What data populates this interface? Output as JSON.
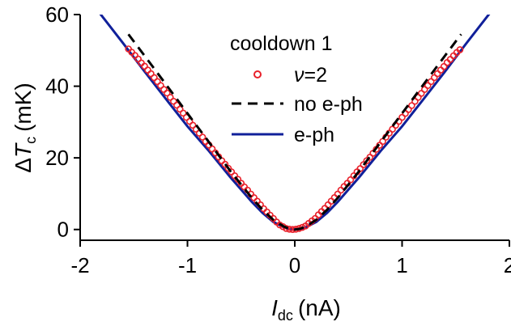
{
  "chart_data": {
    "type": "scatter",
    "xlabel": {
      "symbol": "I",
      "subscript": "dc",
      "unit": "(nA)"
    },
    "ylabel": {
      "prefix": "Δ",
      "symbol": "T",
      "subscript": "c",
      "unit": "(mK)"
    },
    "xlim": [
      -2.0,
      2.0
    ],
    "ylim": [
      -3,
      60
    ],
    "xticks": [
      -2,
      -1,
      0,
      1,
      2
    ],
    "yticks": [
      0,
      20,
      40,
      60
    ],
    "xtick_labels": [
      "-2",
      "-1",
      "0",
      "1",
      "2"
    ],
    "ytick_labels": [
      "0",
      "20",
      "40",
      "60"
    ],
    "grid": false,
    "legend": {
      "position": "top-center",
      "title": "cooldown 1",
      "entries": [
        {
          "key": "nu2",
          "label_symbol": "ν",
          "label_rest": "=2"
        },
        {
          "key": "no_eph",
          "label": "no e-ph"
        },
        {
          "key": "eph",
          "label": "e-ph"
        }
      ]
    },
    "series": [
      {
        "key": "nu2",
        "kind": "scatter",
        "color": "#e8202a",
        "x": [
          -1.55,
          -1.52,
          -1.49,
          -1.46,
          -1.43,
          -1.4,
          -1.37,
          -1.34,
          -1.31,
          -1.28,
          -1.25,
          -1.22,
          -1.19,
          -1.16,
          -1.13,
          -1.1,
          -1.07,
          -1.04,
          -1.01,
          -0.98,
          -0.95,
          -0.92,
          -0.89,
          -0.86,
          -0.83,
          -0.8,
          -0.77,
          -0.74,
          -0.71,
          -0.68,
          -0.65,
          -0.62,
          -0.59,
          -0.56,
          -0.53,
          -0.5,
          -0.47,
          -0.44,
          -0.41,
          -0.38,
          -0.35,
          -0.32,
          -0.29,
          -0.26,
          -0.23,
          -0.2,
          -0.17,
          -0.14,
          -0.11,
          -0.08,
          -0.05,
          -0.02,
          0.01,
          0.04,
          0.07,
          0.1,
          0.13,
          0.16,
          0.19,
          0.22,
          0.25,
          0.28,
          0.31,
          0.34,
          0.37,
          0.4,
          0.43,
          0.46,
          0.49,
          0.52,
          0.55,
          0.58,
          0.61,
          0.64,
          0.67,
          0.7,
          0.73,
          0.76,
          0.79,
          0.82,
          0.85,
          0.88,
          0.91,
          0.94,
          0.97,
          1.0,
          1.03,
          1.06,
          1.09,
          1.12,
          1.15,
          1.18,
          1.21,
          1.24,
          1.27,
          1.3,
          1.33,
          1.36,
          1.39,
          1.42,
          1.45,
          1.48,
          1.51,
          1.54
        ],
        "y": [
          50.4,
          49.5,
          48.6,
          47.6,
          46.5,
          45.6,
          44.5,
          43.5,
          42.4,
          41.3,
          40.2,
          39.1,
          38.1,
          36.9,
          35.8,
          34.7,
          33.6,
          32.5,
          31.3,
          30.2,
          29.1,
          28.0,
          26.9,
          25.8,
          24.6,
          23.6,
          22.5,
          21.4,
          20.3,
          19.2,
          18.2,
          17.1,
          16.1,
          15.0,
          14.0,
          12.9,
          11.9,
          11.0,
          9.9,
          8.9,
          7.9,
          6.9,
          5.8,
          4.9,
          4.0,
          3.1,
          2.1,
          1.3,
          0.8,
          0.3,
          0.1,
          0.0,
          0.1,
          0.3,
          0.6,
          1.0,
          1.7,
          2.4,
          3.1,
          4.1,
          5.0,
          5.9,
          6.9,
          7.9,
          8.9,
          9.9,
          11.0,
          12.0,
          12.9,
          13.9,
          15.0,
          16.1,
          17.0,
          18.1,
          19.2,
          20.2,
          21.3,
          22.4,
          23.5,
          24.6,
          25.8,
          26.9,
          28.0,
          29.1,
          30.2,
          31.3,
          32.4,
          33.5,
          34.6,
          35.8,
          36.9,
          38.0,
          39.1,
          40.2,
          41.3,
          42.4,
          43.5,
          44.5,
          45.5,
          46.6,
          47.5,
          48.5,
          49.4,
          50.2
        ]
      },
      {
        "key": "no_eph",
        "kind": "line",
        "color": "#000000",
        "dash": "dashed",
        "x": [
          -1.55,
          -1.4,
          -1.2,
          -1.0,
          -0.8,
          -0.6,
          -0.4,
          -0.3,
          -0.2,
          -0.1,
          -0.05,
          0.0,
          0.05,
          0.1,
          0.2,
          0.3,
          0.4,
          0.6,
          0.8,
          1.0,
          1.2,
          1.4,
          1.55
        ],
        "y": [
          54.5,
          48.5,
          40.5,
          32.4,
          24.4,
          16.3,
          8.8,
          5.5,
          2.7,
          0.8,
          0.2,
          0.0,
          0.2,
          0.8,
          2.7,
          5.5,
          8.8,
          16.3,
          24.4,
          32.4,
          40.5,
          48.5,
          54.5
        ]
      },
      {
        "key": "eph",
        "kind": "line",
        "color": "#10209a",
        "dash": "solid",
        "x": [
          -1.82,
          -1.6,
          -1.4,
          -1.2,
          -1.0,
          -0.8,
          -0.6,
          -0.4,
          -0.3,
          -0.2,
          -0.1,
          -0.05,
          0.0,
          0.05,
          0.1,
          0.2,
          0.3,
          0.4,
          0.6,
          0.8,
          1.0,
          1.2,
          1.4,
          1.6,
          1.82
        ],
        "y": [
          60.5,
          52.0,
          44.1,
          36.4,
          28.8,
          21.9,
          14.6,
          7.7,
          4.6,
          2.1,
          0.6,
          0.15,
          0.0,
          0.15,
          0.6,
          2.1,
          4.6,
          7.7,
          14.6,
          21.9,
          28.8,
          36.4,
          44.1,
          52.0,
          60.5
        ]
      }
    ]
  }
}
